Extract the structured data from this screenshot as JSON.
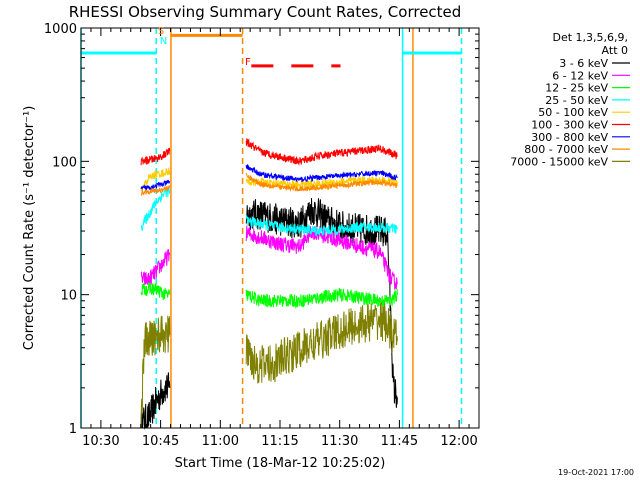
{
  "chart_data": {
    "type": "line",
    "title": "RHESSI Observing Summary Count Rates, Corrected",
    "xlabel": "Start Time (18-Mar-12 10:25:02)",
    "ylabel": "Corrected Count Rate (s⁻¹ detector⁻¹)",
    "x_unit": "minutes after 10:25",
    "xlim": [
      0,
      100
    ],
    "ylim": [
      1,
      1000
    ],
    "yscale": "log",
    "x_ticks": [
      {
        "value": 5,
        "label": "10:30"
      },
      {
        "value": 20,
        "label": "10:45"
      },
      {
        "value": 35,
        "label": "11:00"
      },
      {
        "value": 50,
        "label": "11:15"
      },
      {
        "value": 65,
        "label": "11:30"
      },
      {
        "value": 80,
        "label": "11:45"
      },
      {
        "value": 95,
        "label": "12:00"
      }
    ],
    "y_ticks": [
      {
        "value": 1,
        "label": "1"
      },
      {
        "value": 10,
        "label": "10"
      },
      {
        "value": 100,
        "label": "100"
      },
      {
        "value": 1000,
        "label": "1000"
      }
    ],
    "legend_header": [
      "Det 1,3,5,6,9,",
      "Att 0"
    ],
    "legend_position": "top-right",
    "segments": [
      [
        15.1,
        22.3
      ],
      [
        41.5,
        79.5
      ]
    ],
    "series": [
      {
        "name": "3 - 6 keV",
        "color": "#000000",
        "noise": 0.12,
        "points": [
          [
            15.1,
            1.1
          ],
          [
            17,
            1.2
          ],
          [
            19,
            1.6
          ],
          [
            21,
            2.0
          ],
          [
            22.3,
            2.0
          ],
          [
            41.5,
            40
          ],
          [
            45,
            40
          ],
          [
            50,
            36
          ],
          [
            55,
            34
          ],
          [
            58,
            44
          ],
          [
            62,
            36
          ],
          [
            66,
            32
          ],
          [
            70,
            31
          ],
          [
            75,
            30
          ],
          [
            77,
            29
          ],
          [
            78.5,
            2.0
          ],
          [
            79.5,
            1.7
          ]
        ]
      },
      {
        "name": "6 - 12 keV",
        "color": "#ff00ff",
        "noise": 0.06,
        "points": [
          [
            15.1,
            13
          ],
          [
            17,
            13
          ],
          [
            19,
            15
          ],
          [
            21,
            18
          ],
          [
            22.3,
            20
          ],
          [
            41.5,
            29
          ],
          [
            45,
            27
          ],
          [
            50,
            24
          ],
          [
            55,
            23
          ],
          [
            58,
            30
          ],
          [
            62,
            27
          ],
          [
            66,
            25
          ],
          [
            70,
            23
          ],
          [
            75,
            21
          ],
          [
            78,
            13
          ],
          [
            79.5,
            12
          ]
        ]
      },
      {
        "name": "12 - 25 keV",
        "color": "#00ff00",
        "noise": 0.05,
        "points": [
          [
            15.1,
            11
          ],
          [
            17,
            11
          ],
          [
            19,
            11
          ],
          [
            21,
            10
          ],
          [
            22.3,
            10
          ],
          [
            41.5,
            10
          ],
          [
            45,
            9
          ],
          [
            50,
            9
          ],
          [
            55,
            9
          ],
          [
            60,
            9.5
          ],
          [
            65,
            10
          ],
          [
            70,
            9.5
          ],
          [
            75,
            9
          ],
          [
            78,
            9
          ],
          [
            79.5,
            10
          ]
        ]
      },
      {
        "name": "25 - 50 keV",
        "color": "#00ffff",
        "noise": 0.04,
        "points": [
          [
            15.1,
            32
          ],
          [
            17,
            40
          ],
          [
            19,
            50
          ],
          [
            21,
            58
          ],
          [
            22.3,
            60
          ],
          [
            41.5,
            36
          ],
          [
            45,
            34
          ],
          [
            50,
            32
          ],
          [
            55,
            31
          ],
          [
            60,
            30
          ],
          [
            65,
            31
          ],
          [
            70,
            32
          ],
          [
            75,
            32
          ],
          [
            79.5,
            31
          ]
        ]
      },
      {
        "name": "50 - 100 keV",
        "color": "#ffcc00",
        "noise": 0.03,
        "points": [
          [
            15.1,
            60
          ],
          [
            17,
            75
          ],
          [
            19,
            80
          ],
          [
            21,
            82
          ],
          [
            22.3,
            85
          ],
          [
            41.5,
            70
          ],
          [
            45,
            70
          ],
          [
            50,
            68
          ],
          [
            55,
            67
          ],
          [
            60,
            68
          ],
          [
            65,
            70
          ],
          [
            70,
            72
          ],
          [
            75,
            72
          ],
          [
            79.5,
            70
          ]
        ]
      },
      {
        "name": "100 - 300 keV",
        "color": "#ff0000",
        "noise": 0.03,
        "points": [
          [
            15.1,
            100
          ],
          [
            17,
            102
          ],
          [
            19,
            105
          ],
          [
            21,
            112
          ],
          [
            22.3,
            120
          ],
          [
            41.5,
            140
          ],
          [
            45,
            118
          ],
          [
            50,
            108
          ],
          [
            55,
            100
          ],
          [
            60,
            110
          ],
          [
            65,
            115
          ],
          [
            70,
            120
          ],
          [
            75,
            125
          ],
          [
            79.5,
            110
          ]
        ]
      },
      {
        "name": "300 - 800 keV",
        "color": "#0000ff",
        "noise": 0.02,
        "points": [
          [
            15.1,
            62
          ],
          [
            17,
            64
          ],
          [
            19,
            66
          ],
          [
            21,
            68
          ],
          [
            22.3,
            70
          ],
          [
            41.5,
            92
          ],
          [
            45,
            80
          ],
          [
            50,
            76
          ],
          [
            55,
            73
          ],
          [
            60,
            76
          ],
          [
            65,
            78
          ],
          [
            70,
            80
          ],
          [
            75,
            82
          ],
          [
            79.5,
            75
          ]
        ]
      },
      {
        "name": "800 - 7000 keV",
        "color": "#ff8800",
        "noise": 0.02,
        "points": [
          [
            15.1,
            58
          ],
          [
            17,
            60
          ],
          [
            19,
            60
          ],
          [
            21,
            62
          ],
          [
            22.3,
            64
          ],
          [
            41.5,
            78
          ],
          [
            45,
            68
          ],
          [
            50,
            64
          ],
          [
            55,
            62
          ],
          [
            60,
            64
          ],
          [
            65,
            66
          ],
          [
            70,
            68
          ],
          [
            75,
            70
          ],
          [
            79.5,
            66
          ]
        ]
      },
      {
        "name": "7000 - 15000 keV",
        "color": "#808000",
        "noise": 0.15,
        "points": [
          [
            15.1,
            1.2
          ],
          [
            16,
            4.5
          ],
          [
            17,
            4.5
          ],
          [
            19,
            5
          ],
          [
            21,
            5
          ],
          [
            22.3,
            5
          ],
          [
            41.5,
            4
          ],
          [
            44,
            3
          ],
          [
            48,
            3
          ],
          [
            52,
            3.5
          ],
          [
            56,
            4
          ],
          [
            60,
            4.5
          ],
          [
            63,
            5
          ],
          [
            66,
            5.5
          ],
          [
            70,
            6
          ],
          [
            75,
            6.5
          ],
          [
            77,
            6
          ],
          [
            78,
            5
          ],
          [
            79.5,
            4.5
          ]
        ]
      }
    ],
    "vertical_lines": [
      {
        "name": "cyan-solid-left",
        "x": 0,
        "color": "#00ffff",
        "style": "solid"
      },
      {
        "name": "cyan-dashed-left",
        "x": 18.9,
        "color": "#00ffff",
        "style": "dashed"
      },
      {
        "name": "orange-solid",
        "x": 22.6,
        "color": "#ff8800",
        "style": "solid"
      },
      {
        "name": "orange-dashed",
        "x": 40.6,
        "color": "#ff8800",
        "style": "dashed"
      },
      {
        "name": "cyan-solid-right",
        "x": 80.8,
        "color": "#00ffff",
        "style": "solid"
      },
      {
        "name": "orange-solid-right",
        "x": 83.4,
        "color": "#ff8800",
        "style": "solid"
      },
      {
        "name": "cyan-dashed-right",
        "x": 95.6,
        "color": "#00ffff",
        "style": "dashed"
      }
    ],
    "horizontal_bars": [
      {
        "name": "cyan-bar-left",
        "x_from": 0,
        "x_to": 18.9,
        "y": 650,
        "color": "#00ffff",
        "style": "solid"
      },
      {
        "name": "orange-bar",
        "x_from": 22.6,
        "x_to": 40.6,
        "y": 880,
        "color": "#ff8800",
        "style": "solid"
      },
      {
        "name": "red-bar",
        "x_from": 42.8,
        "x_to": 65.2,
        "y": 520,
        "color": "#ff0000",
        "style": "dashed"
      },
      {
        "name": "cyan-bar-right",
        "x_from": 80.8,
        "x_to": 95.6,
        "y": 650,
        "color": "#00ffff",
        "style": "solid"
      }
    ],
    "annotations": [
      {
        "name": "annotation-s",
        "text": "S",
        "x": 19.3,
        "y": 900,
        "color": "#ff8800"
      },
      {
        "name": "annotation-n",
        "text": "N",
        "x": 19.8,
        "y": 760,
        "color": "#00ffff"
      },
      {
        "name": "annotation-f",
        "text": "F",
        "x": 41.2,
        "y": 530,
        "color": "#ff0000"
      }
    ],
    "footer_date": "19-Oct-2021 17:00"
  }
}
